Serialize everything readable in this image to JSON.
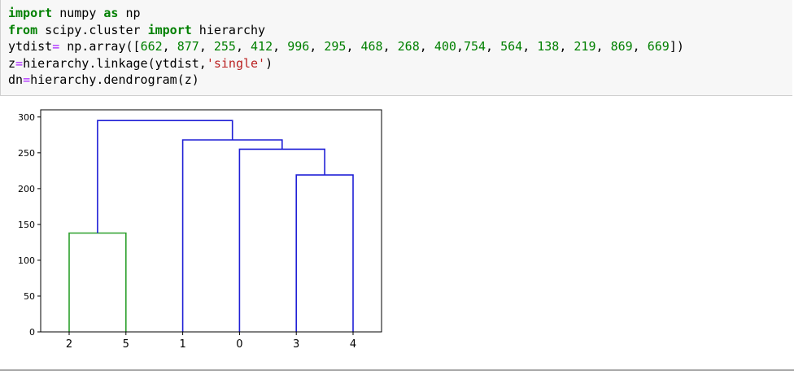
{
  "code_cell": {
    "lines": [
      [
        {
          "t": "import",
          "c": "kw"
        },
        {
          "t": " numpy ",
          "c": ""
        },
        {
          "t": "as",
          "c": "kw"
        },
        {
          "t": " np",
          "c": ""
        }
      ],
      [
        {
          "t": "from",
          "c": "kw"
        },
        {
          "t": " scipy.cluster ",
          "c": ""
        },
        {
          "t": "import",
          "c": "kw"
        },
        {
          "t": " hierarchy",
          "c": ""
        }
      ],
      [
        {
          "t": "ytdist",
          "c": ""
        },
        {
          "t": "=",
          "c": "op"
        },
        {
          "t": " np.array([",
          "c": ""
        },
        {
          "t": "662",
          "c": "num"
        },
        {
          "t": ", ",
          "c": ""
        },
        {
          "t": "877",
          "c": "num"
        },
        {
          "t": ", ",
          "c": ""
        },
        {
          "t": "255",
          "c": "num"
        },
        {
          "t": ", ",
          "c": ""
        },
        {
          "t": "412",
          "c": "num"
        },
        {
          "t": ", ",
          "c": ""
        },
        {
          "t": "996",
          "c": "num"
        },
        {
          "t": ", ",
          "c": ""
        },
        {
          "t": "295",
          "c": "num"
        },
        {
          "t": ", ",
          "c": ""
        },
        {
          "t": "468",
          "c": "num"
        },
        {
          "t": ", ",
          "c": ""
        },
        {
          "t": "268",
          "c": "num"
        },
        {
          "t": ", ",
          "c": ""
        },
        {
          "t": "400",
          "c": "num"
        },
        {
          "t": ",",
          "c": ""
        },
        {
          "t": "754",
          "c": "num"
        },
        {
          "t": ", ",
          "c": ""
        },
        {
          "t": "564",
          "c": "num"
        },
        {
          "t": ", ",
          "c": ""
        },
        {
          "t": "138",
          "c": "num"
        },
        {
          "t": ", ",
          "c": ""
        },
        {
          "t": "219",
          "c": "num"
        },
        {
          "t": ", ",
          "c": ""
        },
        {
          "t": "869",
          "c": "num"
        },
        {
          "t": ", ",
          "c": ""
        },
        {
          "t": "669",
          "c": "num"
        },
        {
          "t": "])",
          "c": ""
        }
      ],
      [
        {
          "t": "z",
          "c": ""
        },
        {
          "t": "=",
          "c": "op"
        },
        {
          "t": "hierarchy.linkage(ytdist,",
          "c": ""
        },
        {
          "t": "'single'",
          "c": "str"
        },
        {
          "t": ")",
          "c": ""
        }
      ],
      [
        {
          "t": "dn",
          "c": ""
        },
        {
          "t": "=",
          "c": "op"
        },
        {
          "t": "hierarchy.dendrogram(z)",
          "c": ""
        }
      ]
    ]
  },
  "chart_data": {
    "type": "dendrogram",
    "title": "",
    "xlabel": "",
    "ylabel": "",
    "leaf_labels": [
      "2",
      "5",
      "1",
      "0",
      "3",
      "4"
    ],
    "ylim": [
      0,
      310
    ],
    "yticks": [
      0,
      50,
      100,
      150,
      200,
      250,
      300
    ],
    "links": [
      {
        "left_leaf_index": 0,
        "right_leaf_index": 1,
        "height": 138,
        "left_child_height": 0,
        "right_child_height": 0,
        "color": "#2ca02c"
      },
      {
        "left_leaf_index": 4,
        "right_leaf_index": 5,
        "height": 219,
        "left_child_height": 0,
        "right_child_height": 0,
        "color": "#1f1fd6"
      },
      {
        "left_leaf_index": 3,
        "right_leaf_index": 4.5,
        "height": 255,
        "left_child_height": 0,
        "right_child_height": 219,
        "color": "#1f1fd6"
      },
      {
        "left_leaf_index": 2,
        "right_leaf_index": 3.75,
        "height": 268,
        "left_child_height": 0,
        "right_child_height": 255,
        "color": "#1f1fd6"
      },
      {
        "left_leaf_index": 0.5,
        "right_leaf_index": 2.875,
        "height": 295,
        "left_child_height": 138,
        "right_child_height": 268,
        "color": "#1f1fd6"
      }
    ],
    "grid": false,
    "axis_color": "#000000"
  }
}
